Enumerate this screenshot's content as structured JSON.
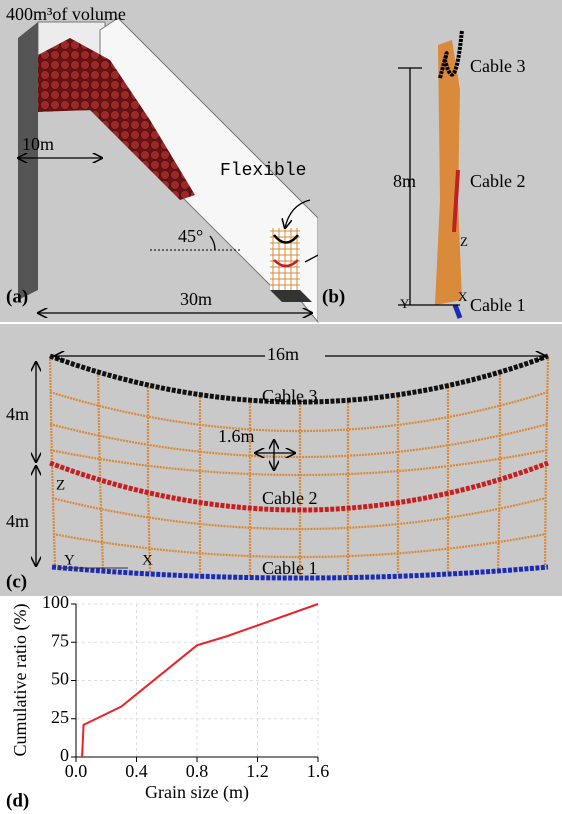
{
  "panels": {
    "a": {
      "label": "(a)",
      "volume": "400m³of volume",
      "width_dim": "10m",
      "barrier": "Flexible barrier",
      "angle": "45°",
      "length_dim": "30m"
    },
    "b": {
      "label": "(b)",
      "cable3": "Cable 3",
      "height_dim": "8m",
      "cable2": "Cable 2",
      "axis_z": "Z",
      "axis_x": "X",
      "axis_y": "Y",
      "cable1": "Cable 1"
    },
    "c": {
      "label": "(c)",
      "width_dim": "16m",
      "cable3": "Cable 3",
      "upper_dim": "4m",
      "mesh_dim": "1.6m",
      "axis_z": "Z",
      "cable2": "Cable 2",
      "lower_dim": "4m",
      "axis_y": "Y",
      "axis_x": "X",
      "cable1": "Cable 1"
    },
    "d": {
      "label": "(d)"
    }
  },
  "chart_data": {
    "type": "line",
    "x_label": "Grain size (m)",
    "y_label": "Cumulative ratio (%)",
    "x": [
      0.04,
      0.05,
      0.3,
      0.8,
      1.0,
      1.6
    ],
    "values": [
      0,
      21,
      33,
      73,
      79,
      100
    ],
    "color": "#e8232a",
    "xlim": [
      0,
      1.6
    ],
    "xticks": [
      {
        "value": 0,
        "label": "0.0"
      },
      0.4,
      0.8,
      1.2,
      1.6
    ],
    "ylim": [
      0,
      100
    ],
    "yticks": [
      0,
      25,
      50,
      75,
      100
    ],
    "grid": true
  }
}
